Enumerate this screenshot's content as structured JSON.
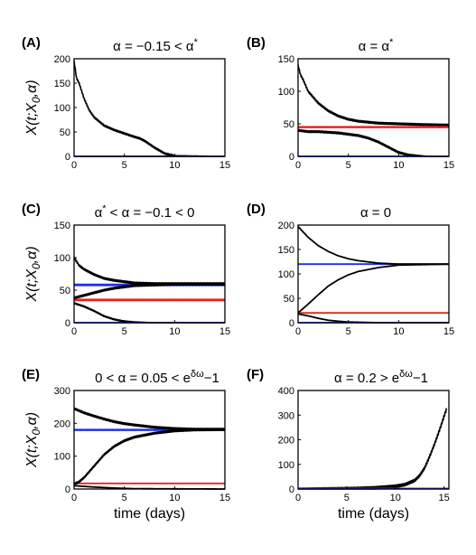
{
  "figure": {
    "ylabel": {
      "main": "X(t;X",
      "sub": "0",
      "tail": ",α)"
    },
    "xlabel": "time (days)"
  },
  "colors": {
    "black": "#000000",
    "red": "#e8231f",
    "blue": "#1f2ee8"
  },
  "chart_data": [
    {
      "type": "line",
      "panel": "(A)",
      "title": "α = −0.15 < α*",
      "xlim": [
        0,
        15
      ],
      "ylim": [
        0,
        200
      ],
      "xticks": [
        0,
        5,
        10,
        15
      ],
      "yticks": [
        0,
        50,
        100,
        150,
        200
      ],
      "series": [
        {
          "color": "black",
          "stochastic": true,
          "jitter": 3,
          "x": [
            0,
            0.25,
            0.5,
            1,
            1.5,
            2,
            3,
            4,
            5,
            6,
            6.5,
            7,
            8,
            9,
            10,
            15
          ],
          "y": [
            195,
            160,
            150,
            118,
            95,
            80,
            63,
            54,
            47,
            40,
            37,
            32,
            18,
            6,
            1,
            0
          ]
        },
        {
          "color": "red",
          "x": [
            0,
            15
          ],
          "y": [
            0,
            0
          ]
        },
        {
          "color": "blue",
          "x": [
            0,
            15
          ],
          "y": [
            0,
            0
          ]
        }
      ]
    },
    {
      "type": "line",
      "panel": "(B)",
      "title": "α = α*",
      "xlim": [
        0,
        15
      ],
      "ylim": [
        0,
        150
      ],
      "xticks": [
        0,
        5,
        10,
        15
      ],
      "yticks": [
        0,
        50,
        100,
        150
      ],
      "series": [
        {
          "color": "black",
          "stochastic": true,
          "jitter": 2.5,
          "x": [
            0,
            0.25,
            0.5,
            1,
            2,
            3,
            4,
            5,
            6,
            8,
            10,
            12,
            15
          ],
          "y": [
            140,
            125,
            118,
            100,
            82,
            70,
            62,
            57,
            54,
            51,
            50,
            49,
            48
          ]
        },
        {
          "color": "black",
          "stochastic": true,
          "jitter": 2.5,
          "x": [
            0,
            1,
            2,
            3,
            4,
            5,
            6,
            7,
            8,
            8.5,
            9,
            9.5,
            10,
            11,
            12,
            13,
            15
          ],
          "y": [
            40,
            38,
            38,
            37,
            36,
            34,
            32,
            28,
            22,
            18,
            14,
            10,
            6,
            2,
            1,
            0,
            0
          ]
        },
        {
          "color": "red",
          "stochastic": true,
          "jitter": 1.5,
          "x": [
            0,
            15
          ],
          "y": [
            45,
            45
          ]
        },
        {
          "color": "blue",
          "x": [
            0,
            15
          ],
          "y": [
            0,
            0
          ]
        }
      ]
    },
    {
      "type": "line",
      "panel": "(C)",
      "title": "α* < α = −0.1 < 0",
      "xlim": [
        0,
        15
      ],
      "ylim": [
        0,
        150
      ],
      "xticks": [
        0,
        5,
        10,
        15
      ],
      "yticks": [
        0,
        50,
        100,
        150
      ],
      "series": [
        {
          "color": "blue",
          "stochastic": true,
          "jitter": 2,
          "x": [
            0,
            15
          ],
          "y": [
            58,
            58
          ]
        },
        {
          "color": "red",
          "stochastic": true,
          "jitter": 2,
          "x": [
            0,
            15
          ],
          "y": [
            35,
            35
          ]
        },
        {
          "color": "black",
          "stochastic": true,
          "jitter": 2.5,
          "x": [
            0,
            0.5,
            1,
            2,
            3,
            4,
            5,
            6,
            8,
            10,
            15
          ],
          "y": [
            100,
            88,
            82,
            74,
            68,
            65,
            63,
            61,
            60,
            60,
            60
          ]
        },
        {
          "color": "black",
          "stochastic": true,
          "jitter": 2.5,
          "x": [
            0,
            1,
            2,
            3,
            4,
            5,
            6,
            8,
            10,
            15
          ],
          "y": [
            38,
            42,
            46,
            50,
            53,
            55,
            57,
            58,
            59,
            59
          ]
        },
        {
          "color": "black",
          "stochastic": true,
          "jitter": 1.5,
          "x": [
            0,
            1,
            2,
            3,
            4,
            5,
            6,
            8,
            15
          ],
          "y": [
            30,
            25,
            18,
            10,
            5,
            2,
            1,
            0,
            0
          ]
        },
        {
          "color": "blue",
          "x": [
            0,
            15
          ],
          "y": [
            0,
            0
          ]
        }
      ]
    },
    {
      "type": "line",
      "panel": "(D)",
      "title": "α = 0",
      "xlim": [
        0,
        15
      ],
      "ylim": [
        0,
        200
      ],
      "xticks": [
        0,
        5,
        10,
        15
      ],
      "yticks": [
        0,
        50,
        100,
        150,
        200
      ],
      "series": [
        {
          "color": "blue",
          "x": [
            0,
            15
          ],
          "y": [
            120,
            120
          ]
        },
        {
          "color": "red",
          "x": [
            0,
            15
          ],
          "y": [
            20,
            20
          ]
        },
        {
          "color": "black",
          "x": [
            0,
            1,
            2,
            3,
            4,
            5,
            6,
            8,
            10,
            15
          ],
          "y": [
            197,
            175,
            158,
            146,
            137,
            131,
            127,
            122,
            120,
            120
          ]
        },
        {
          "color": "black",
          "x": [
            0,
            1,
            2,
            3,
            4,
            5,
            6,
            8,
            10,
            15
          ],
          "y": [
            20,
            38,
            57,
            75,
            88,
            98,
            105,
            113,
            118,
            120
          ]
        },
        {
          "color": "black",
          "x": [
            0,
            1,
            2,
            3,
            4,
            5,
            6,
            8,
            15
          ],
          "y": [
            18,
            14,
            9,
            5,
            3,
            1.5,
            1,
            0,
            0
          ]
        },
        {
          "color": "blue",
          "x": [
            0,
            15
          ],
          "y": [
            0,
            0
          ]
        }
      ]
    },
    {
      "type": "line",
      "panel": "(E)",
      "title": "0 < α = 0.05 < e^{δω}−1",
      "xlim": [
        0,
        15
      ],
      "ylim": [
        0,
        300
      ],
      "xticks": [
        0,
        5,
        10,
        15
      ],
      "yticks": [
        0,
        100,
        200,
        300
      ],
      "series": [
        {
          "color": "blue",
          "stochastic": true,
          "jitter": 3,
          "x": [
            0,
            15
          ],
          "y": [
            180,
            180
          ]
        },
        {
          "color": "red",
          "x": [
            0,
            15
          ],
          "y": [
            17,
            17
          ]
        },
        {
          "color": "black",
          "stochastic": true,
          "jitter": 5,
          "x": [
            0,
            1,
            2,
            3,
            4,
            5,
            6,
            8,
            10,
            12,
            15
          ],
          "y": [
            245,
            232,
            222,
            213,
            205,
            199,
            195,
            188,
            184,
            182,
            182
          ]
        },
        {
          "color": "black",
          "stochastic": true,
          "jitter": 5,
          "x": [
            0,
            0.5,
            1,
            2,
            3,
            4,
            5,
            6,
            8,
            10,
            12,
            15
          ],
          "y": [
            15,
            22,
            35,
            70,
            105,
            130,
            147,
            158,
            170,
            177,
            180,
            181
          ]
        },
        {
          "color": "black",
          "x": [
            0,
            2,
            4,
            6,
            15
          ],
          "y": [
            10,
            6,
            3,
            1,
            0
          ]
        }
      ]
    },
    {
      "type": "line",
      "panel": "(F)",
      "title": "α = 0.2 > e^{δω}−1",
      "xlim": [
        0,
        15.5
      ],
      "ylim": [
        0,
        400
      ],
      "xticks": [
        0,
        5,
        10,
        15
      ],
      "yticks": [
        0,
        100,
        200,
        300,
        400
      ],
      "series": [
        {
          "color": "black",
          "stochastic": true,
          "jitter": 10,
          "x": [
            0,
            6,
            8,
            10,
            11,
            12,
            12.5,
            13,
            13.5,
            14,
            14.5,
            15,
            15.3
          ],
          "y": [
            1,
            2,
            5,
            11,
            18,
            35,
            55,
            85,
            130,
            180,
            235,
            295,
            330
          ]
        },
        {
          "color": "red",
          "x": [
            0,
            15.5
          ],
          "y": [
            2,
            2
          ]
        },
        {
          "color": "blue",
          "x": [
            0,
            15.5
          ],
          "y": [
            1,
            1
          ]
        }
      ]
    }
  ]
}
